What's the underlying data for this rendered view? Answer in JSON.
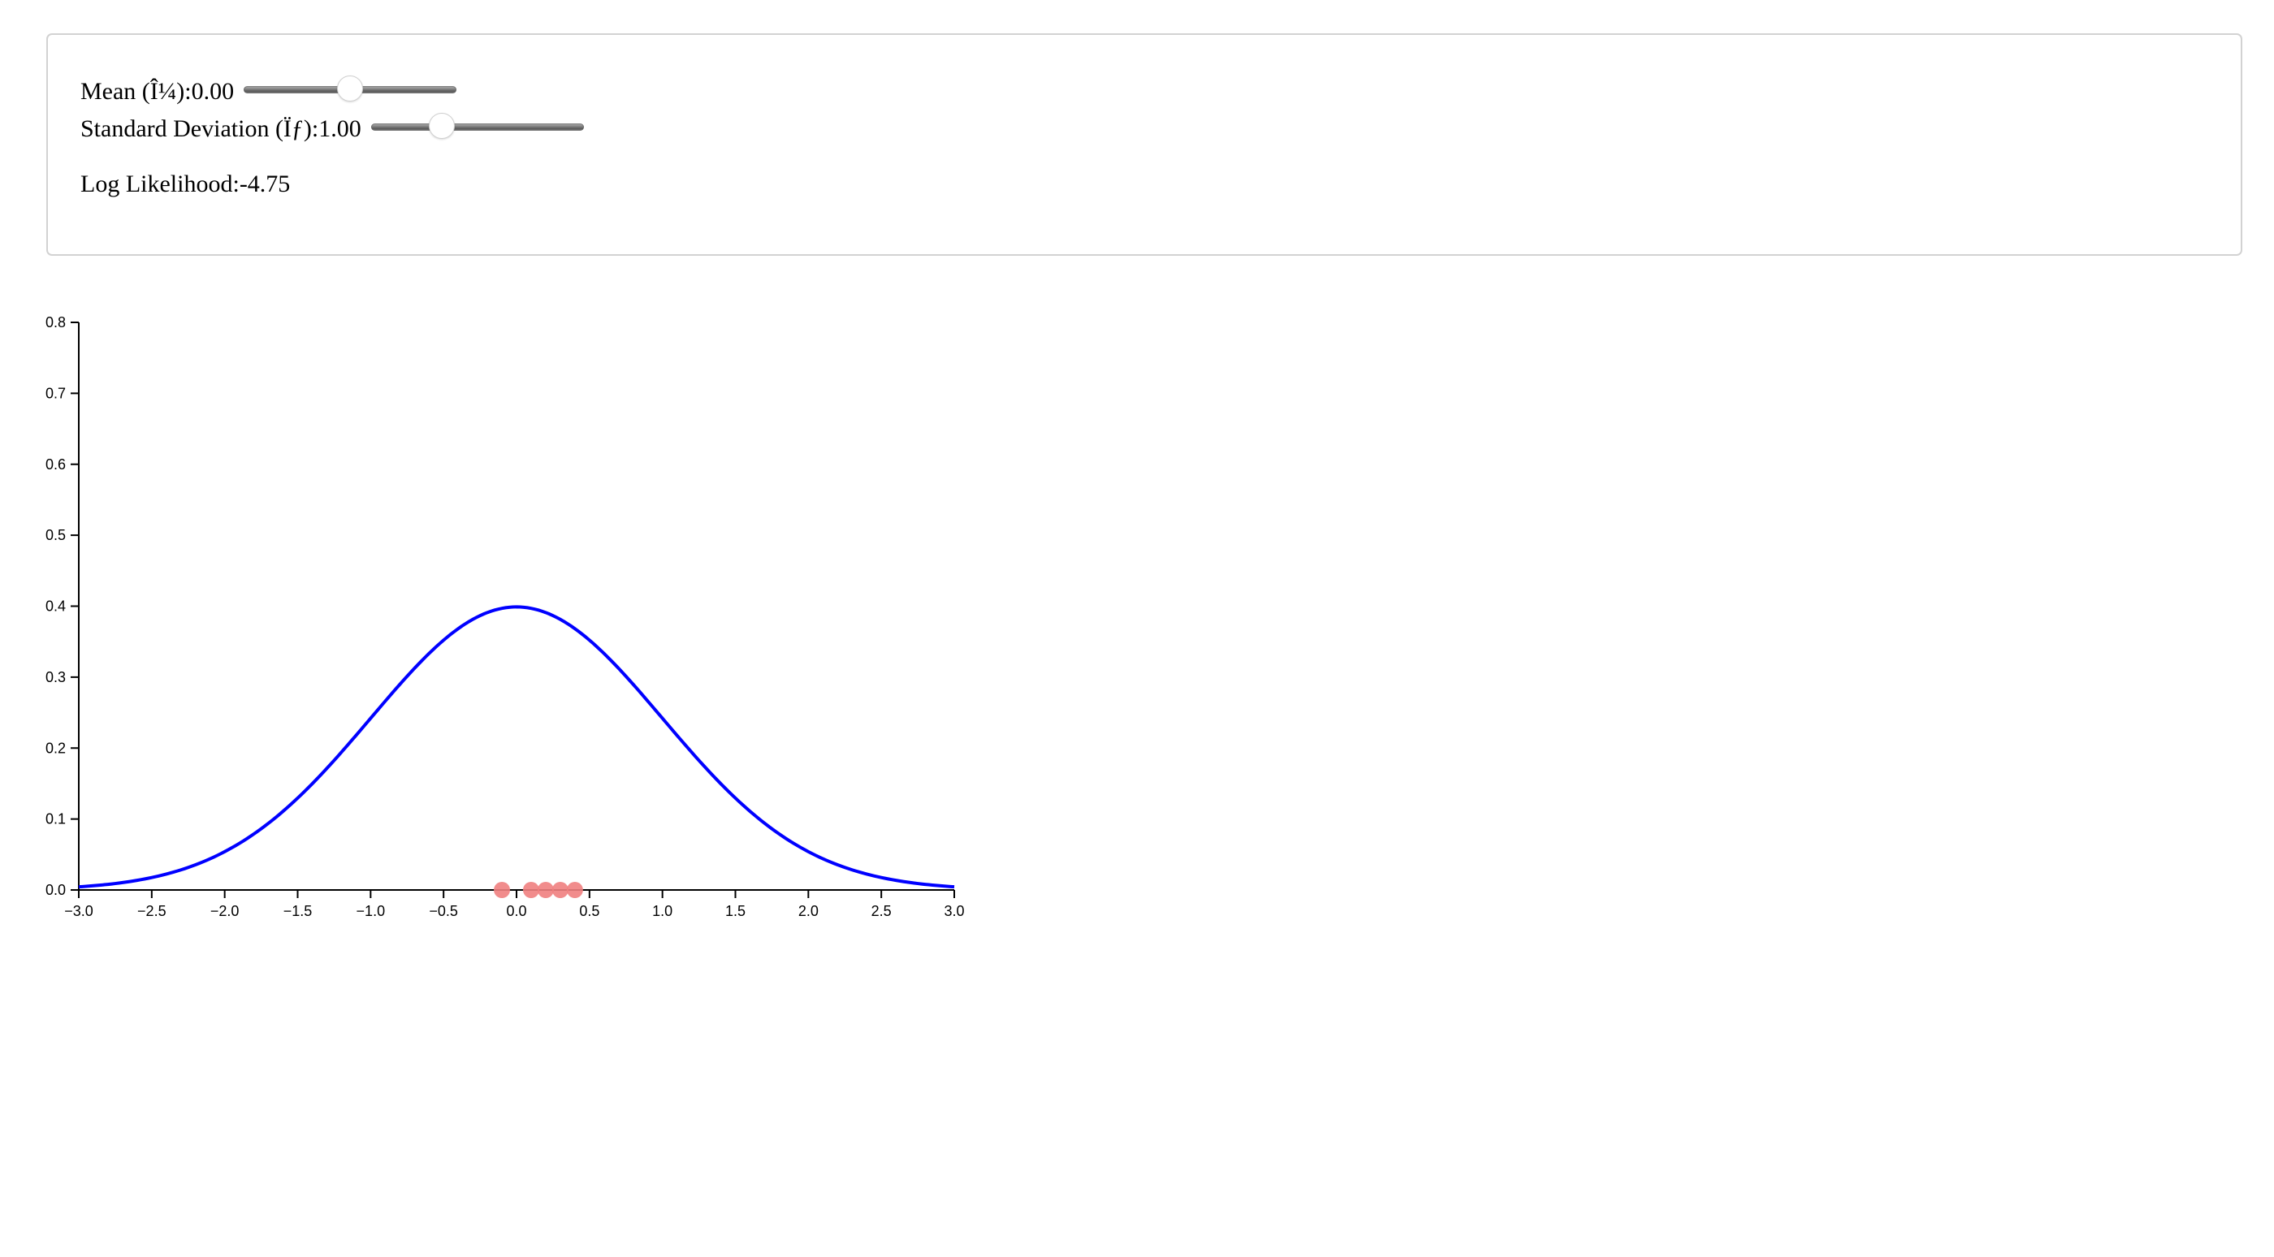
{
  "controls": {
    "mean_label": "Mean (Î¼): ",
    "mean_value": "0.00",
    "mean_slider": {
      "min": -3,
      "max": 3,
      "value": 0.0
    },
    "sd_label": "Standard Deviation (Ïƒ): ",
    "sd_value": "1.00",
    "sd_slider": {
      "min": 0.1,
      "max": 3,
      "value": 1.0
    },
    "loglik_label": "Log Likelihood: ",
    "loglik_value": "-4.75"
  },
  "colors": {
    "curve": "#0000ff",
    "points": "#f08080",
    "axis": "#000000"
  },
  "chart_data": {
    "type": "line",
    "title": "",
    "xlabel": "",
    "ylabel": "",
    "xlim": [
      -3.0,
      3.0
    ],
    "ylim": [
      0.0,
      0.8
    ],
    "x_ticks": [
      "−3.0",
      "−2.5",
      "−2.0",
      "−1.5",
      "−1.0",
      "−0.5",
      "0.0",
      "0.5",
      "1.0",
      "1.5",
      "2.0",
      "2.5",
      "3.0"
    ],
    "y_ticks": [
      "0.0",
      "0.1",
      "0.2",
      "0.3",
      "0.4",
      "0.5",
      "0.6",
      "0.7",
      "0.8"
    ],
    "grid": false,
    "series": [
      {
        "kind": "normal-pdf",
        "mean": 0.0,
        "sd": 1.0,
        "x": [
          -3.0,
          -2.5,
          -2.0,
          -1.5,
          -1.0,
          -0.5,
          0.0,
          0.5,
          1.0,
          1.5,
          2.0,
          2.5,
          3.0
        ],
        "values": [
          0.0044,
          0.0175,
          0.054,
          0.1295,
          0.242,
          0.3521,
          0.3989,
          0.3521,
          0.242,
          0.1295,
          0.054,
          0.0175,
          0.0044
        ]
      }
    ],
    "observations": [
      -0.1,
      0.1,
      0.2,
      0.3,
      0.4
    ]
  }
}
